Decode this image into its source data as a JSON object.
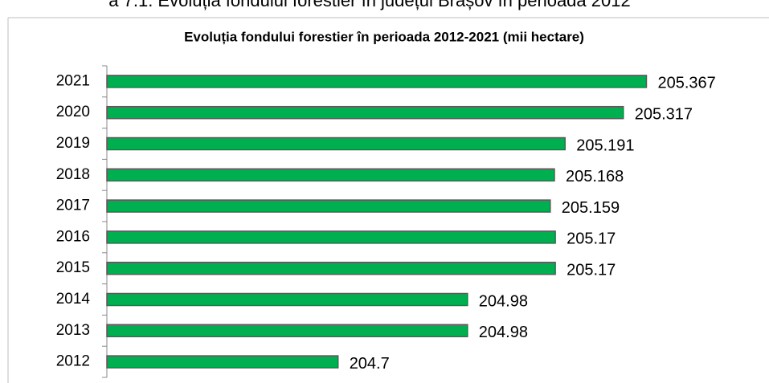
{
  "caption": "a 7.1. Evoluția fondului forestier în județul Brașov în perioada 2012",
  "chart_data": {
    "type": "bar",
    "orientation": "horizontal",
    "title": "Evoluția fondului forestier în perioada 2012-2021 (mii hectare)",
    "categories": [
      "2021",
      "2020",
      "2019",
      "2018",
      "2017",
      "2016",
      "2015",
      "2014",
      "2013",
      "2012"
    ],
    "values": [
      205.367,
      205.317,
      205.191,
      205.168,
      205.159,
      205.17,
      205.17,
      204.98,
      204.98,
      204.7
    ],
    "color": "#00b050",
    "xlim": [
      204.2,
      205.5
    ]
  }
}
